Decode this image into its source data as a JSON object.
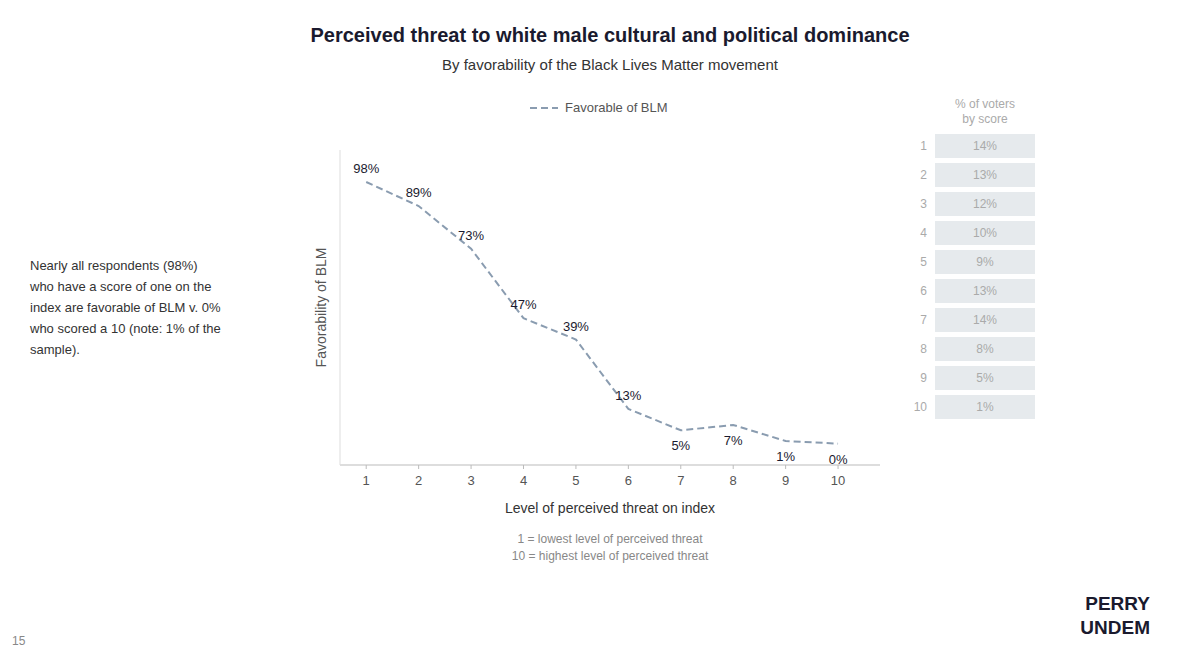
{
  "chart_data": {
    "type": "line",
    "title": "Perceived threat to white male cultural and political dominance",
    "subtitle": "By favorability of the Black Lives Matter movement",
    "x_label": "Level of perceived threat on index",
    "y_label": "Favorability of BLM",
    "x": [
      1,
      2,
      3,
      4,
      5,
      6,
      7,
      8,
      9,
      10
    ],
    "series": [
      {
        "name": "Favorable of BLM",
        "color": "#8a9cb0",
        "line_style": "dashed",
        "values": [
          98,
          89,
          73,
          47,
          39,
          13,
          5,
          7,
          1,
          0
        ],
        "value_labels": [
          "98%",
          "89%",
          "73%",
          "47%",
          "39%",
          "13%",
          "5%",
          "7%",
          "1%",
          "0%"
        ]
      }
    ],
    "xlim": [
      0.5,
      10.8
    ],
    "ylim": [
      -8,
      110
    ],
    "xticks": [
      1,
      2,
      3,
      4,
      5,
      6,
      7,
      8,
      9,
      10
    ],
    "yticks": [],
    "tick_labels": "x",
    "data_labels": true,
    "legend": "top",
    "notes": [
      "1 = lowest level of perceived threat",
      "10 = highest level of perceived threat"
    ],
    "annotation": "Nearly all respondents (98%)\nwho have a score of one on the\nindex are favorable of BLM v. 0%\nwho scored a 10 (note: 1% of the\nsample).",
    "table": {
      "header": "% of voters\nby score",
      "scores": [
        1,
        2,
        3,
        4,
        5,
        6,
        7,
        8,
        9,
        10
      ],
      "values": [
        14,
        13,
        12,
        10,
        9,
        13,
        14,
        8,
        5,
        1
      ],
      "value_labels": [
        "14%",
        "13%",
        "12%",
        "10%",
        "9%",
        "13%",
        "14%",
        "8%",
        "5%",
        "1%"
      ],
      "color": "#e6eaed"
    },
    "branding": [
      "PERRY",
      "UNDEM"
    ],
    "slide_number": "15"
  }
}
